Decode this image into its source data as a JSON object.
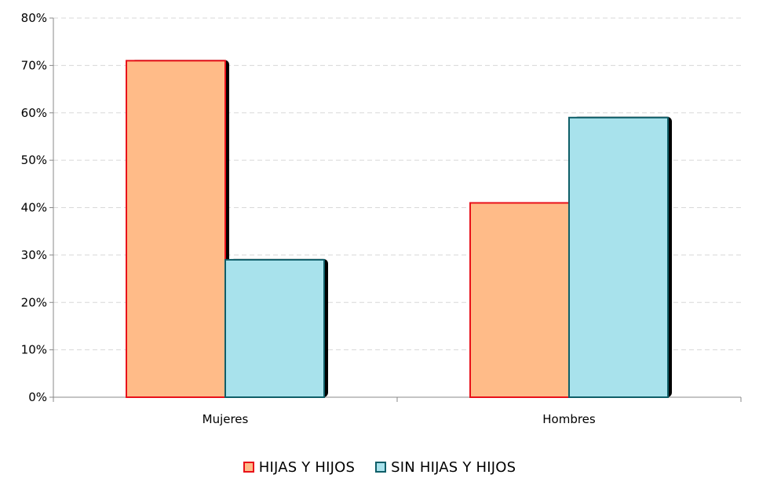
{
  "chart_data": {
    "type": "bar",
    "categories": [
      "Mujeres",
      "Hombres"
    ],
    "series": [
      {
        "name": "HIJAS Y HIJOS",
        "values": [
          71,
          41
        ],
        "fill": "#FFBB88",
        "stroke": "#E8111A"
      },
      {
        "name": "SIN HIJAS Y HIJOS",
        "values": [
          29,
          59
        ],
        "fill": "#A8E2EC",
        "stroke": "#0F5E68"
      }
    ],
    "ylim": [
      0,
      80
    ],
    "yticks": [
      "0%",
      "10%",
      "20%",
      "30%",
      "40%",
      "50%",
      "60%",
      "70%",
      "80%"
    ],
    "grid": true,
    "legend_position": "bottom",
    "shadow_color": "#000000",
    "title": "",
    "xlabel": "",
    "ylabel": ""
  }
}
